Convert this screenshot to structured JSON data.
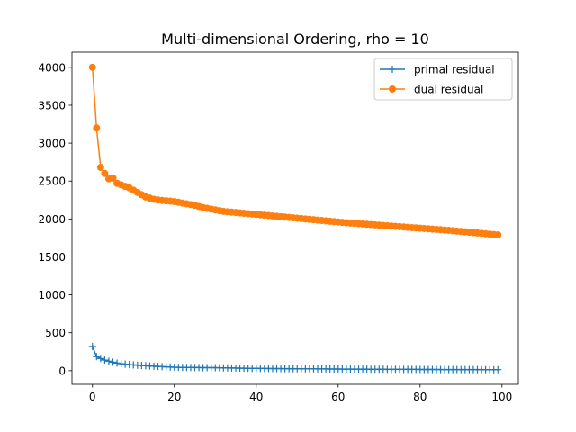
{
  "chart_data": {
    "type": "line",
    "title": "Multi-dimensional Ordering, rho = 10",
    "xlabel": "",
    "ylabel": "",
    "xlim": [
      -5,
      104
    ],
    "ylim": [
      -180,
      4200
    ],
    "x_ticks": [
      0,
      20,
      40,
      60,
      80,
      100
    ],
    "y_ticks": [
      0,
      500,
      1000,
      1500,
      2000,
      2500,
      3000,
      3500,
      4000
    ],
    "grid": false,
    "legend_position": "upper right",
    "series": [
      {
        "name": "primal residual",
        "color": "#1f77b4",
        "marker": "plus",
        "x": [
          0,
          1,
          2,
          3,
          4,
          5,
          6,
          7,
          8,
          9,
          10,
          11,
          12,
          13,
          14,
          15,
          16,
          17,
          18,
          19,
          20,
          21,
          22,
          23,
          24,
          25,
          26,
          27,
          28,
          29,
          30,
          31,
          32,
          33,
          34,
          35,
          36,
          37,
          38,
          39,
          40,
          41,
          42,
          43,
          44,
          45,
          46,
          47,
          48,
          49,
          50,
          51,
          52,
          53,
          54,
          55,
          56,
          57,
          58,
          59,
          60,
          61,
          62,
          63,
          64,
          65,
          66,
          67,
          68,
          69,
          70,
          71,
          72,
          73,
          74,
          75,
          76,
          77,
          78,
          79,
          80,
          81,
          82,
          83,
          84,
          85,
          86,
          87,
          88,
          89,
          90,
          91,
          92,
          93,
          94,
          95,
          96,
          97,
          98,
          99
        ],
        "values": [
          320,
          185,
          160,
          140,
          125,
          112,
          100,
          92,
          86,
          80,
          76,
          72,
          68,
          65,
          62,
          59,
          56,
          53,
          50,
          48,
          45,
          44,
          43,
          42,
          42,
          41,
          41,
          40,
          40,
          40,
          39,
          38,
          37,
          36,
          35,
          34,
          33,
          32,
          31,
          30,
          30,
          29,
          29,
          28,
          28,
          27,
          27,
          26,
          26,
          25,
          25,
          25,
          24,
          24,
          24,
          23,
          23,
          23,
          22,
          22,
          22,
          21,
          21,
          21,
          20,
          20,
          20,
          20,
          19,
          19,
          19,
          19,
          18,
          18,
          18,
          18,
          17,
          17,
          17,
          17,
          16,
          16,
          16,
          16,
          16,
          15,
          15,
          15,
          15,
          15,
          14,
          14,
          14,
          14,
          14,
          14,
          13,
          13,
          13,
          13
        ]
      },
      {
        "name": "dual residual",
        "color": "#ff7f0e",
        "marker": "circle",
        "x": [
          0,
          1,
          2,
          3,
          4,
          5,
          6,
          7,
          8,
          9,
          10,
          11,
          12,
          13,
          14,
          15,
          16,
          17,
          18,
          19,
          20,
          21,
          22,
          23,
          24,
          25,
          26,
          27,
          28,
          29,
          30,
          31,
          32,
          33,
          34,
          35,
          36,
          37,
          38,
          39,
          40,
          41,
          42,
          43,
          44,
          45,
          46,
          47,
          48,
          49,
          50,
          51,
          52,
          53,
          54,
          55,
          56,
          57,
          58,
          59,
          60,
          61,
          62,
          63,
          64,
          65,
          66,
          67,
          68,
          69,
          70,
          71,
          72,
          73,
          74,
          75,
          76,
          77,
          78,
          79,
          80,
          81,
          82,
          83,
          84,
          85,
          86,
          87,
          88,
          89,
          90,
          91,
          92,
          93,
          94,
          95,
          96,
          97,
          98,
          99
        ],
        "values": [
          4000,
          3200,
          2680,
          2600,
          2530,
          2540,
          2470,
          2450,
          2430,
          2410,
          2380,
          2350,
          2320,
          2290,
          2275,
          2260,
          2250,
          2245,
          2240,
          2235,
          2230,
          2220,
          2210,
          2200,
          2190,
          2180,
          2165,
          2150,
          2140,
          2130,
          2120,
          2110,
          2100,
          2095,
          2090,
          2085,
          2080,
          2075,
          2070,
          2065,
          2060,
          2055,
          2050,
          2045,
          2040,
          2035,
          2030,
          2025,
          2020,
          2015,
          2010,
          2005,
          2000,
          1995,
          1990,
          1985,
          1980,
          1975,
          1970,
          1965,
          1960,
          1955,
          1950,
          1946,
          1942,
          1938,
          1934,
          1930,
          1926,
          1922,
          1918,
          1914,
          1910,
          1906,
          1902,
          1898,
          1894,
          1890,
          1886,
          1882,
          1878,
          1874,
          1870,
          1866,
          1862,
          1858,
          1854,
          1850,
          1845,
          1840,
          1835,
          1830,
          1825,
          1820,
          1815,
          1810,
          1805,
          1800,
          1795,
          1790
        ]
      }
    ]
  }
}
